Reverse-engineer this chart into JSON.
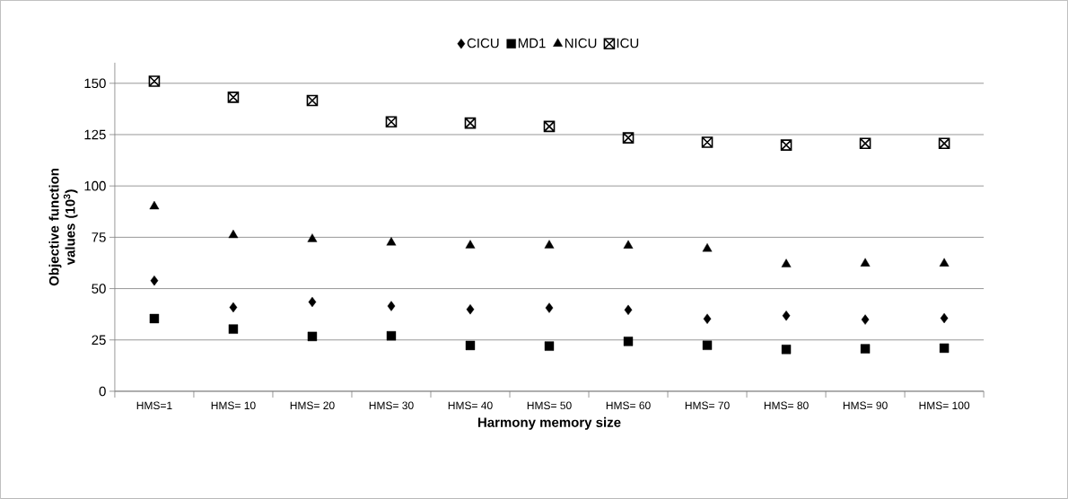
{
  "chart_data": {
    "type": "scatter",
    "xlabel": "Harmony memory size",
    "ylabel": "Objective function values (10$^{3}$)",
    "categories": [
      "HMS=1",
      "HMS= 10",
      "HMS= 20",
      "HMS= 30",
      "HMS= 40",
      "HMS= 50",
      "HMS= 60",
      "HMS= 70",
      "HMS= 80",
      "HMS= 90",
      "HMS= 100"
    ],
    "series": [
      {
        "name": "CICU",
        "color": "#000000",
        "marker": "diamond",
        "values": [
          53.9,
          40.9,
          43.5,
          41.5,
          39.9,
          40.6,
          39.6,
          35.3,
          36.8,
          34.9,
          35.6
        ]
      },
      {
        "name": "MD1",
        "color": "#000000",
        "marker": "square",
        "values": [
          35.4,
          30.3,
          26.7,
          27.0,
          22.3,
          22.0,
          24.3,
          22.4,
          20.4,
          20.7,
          21.0
        ]
      },
      {
        "name": "NICU",
        "color": "#000000",
        "marker": "triangle",
        "values": [
          90.0,
          76.0,
          74.1,
          72.4,
          71.0,
          71.0,
          70.9,
          69.4,
          61.8,
          62.2,
          62.2
        ]
      },
      {
        "name": "ICU",
        "color": "#000000",
        "marker": "cross",
        "values": [
          151.0,
          143.2,
          141.6,
          131.2,
          130.6,
          129.0,
          123.4,
          121.3,
          119.9,
          120.7,
          120.7
        ]
      }
    ],
    "ylim": [
      0,
      160
    ],
    "yticks": [
      0,
      25,
      50,
      75,
      100,
      125,
      150
    ],
    "grid": "y",
    "legend": "top"
  }
}
